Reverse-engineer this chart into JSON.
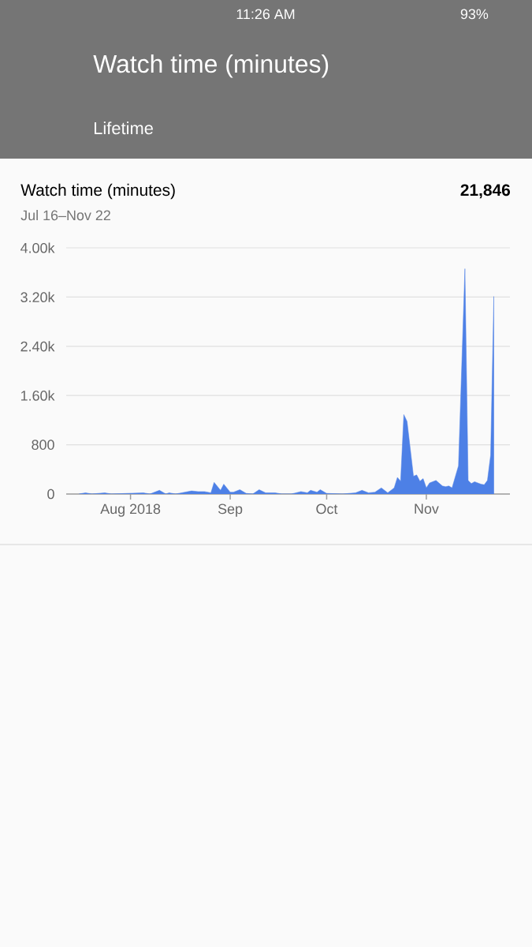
{
  "chart_data": {
    "type": "area",
    "title": "Watch time (minutes)",
    "subtitle": "Jul 16–Nov 22",
    "annotations": [
      "Watch time (minutes)",
      "Lifetime",
      "21,846",
      "11:26 AM",
      "93%"
    ],
    "x": [
      "2018-07-16",
      "2018-07-18",
      "2018-07-20",
      "2018-07-24",
      "2018-07-26",
      "2018-08-05",
      "2018-08-07",
      "2018-08-10",
      "2018-08-12",
      "2018-08-13",
      "2018-08-15",
      "2018-08-20",
      "2018-08-22",
      "2018-08-24",
      "2018-08-26",
      "2018-08-27",
      "2018-08-29",
      "2018-08-30",
      "2018-09-01",
      "2018-09-02",
      "2018-09-04",
      "2018-09-06",
      "2018-09-08",
      "2018-09-10",
      "2018-09-12",
      "2018-09-15",
      "2018-09-17",
      "2018-09-20",
      "2018-09-23",
      "2018-09-25",
      "2018-09-26",
      "2018-09-28",
      "2018-09-29",
      "2018-10-01",
      "2018-10-06",
      "2018-10-10",
      "2018-10-12",
      "2018-10-14",
      "2018-10-16",
      "2018-10-18",
      "2018-10-20",
      "2018-10-22",
      "2018-10-23",
      "2018-10-24",
      "2018-10-25",
      "2018-10-26",
      "2018-10-28",
      "2018-10-29",
      "2018-10-30",
      "2018-10-31",
      "2018-11-01",
      "2018-11-02",
      "2018-11-04",
      "2018-11-06",
      "2018-11-07",
      "2018-11-08",
      "2018-11-09",
      "2018-11-11",
      "2018-11-13",
      "2018-11-14",
      "2018-11-15",
      "2018-11-16",
      "2018-11-18",
      "2018-11-19",
      "2018-11-20",
      "2018-11-21",
      "2018-11-22"
    ],
    "series": [
      {
        "color": "#4d80e6",
        "values": [
          0,
          20,
          0,
          20,
          0,
          20,
          0,
          60,
          0,
          20,
          0,
          50,
          40,
          40,
          20,
          190,
          60,
          160,
          30,
          30,
          70,
          10,
          0,
          70,
          20,
          20,
          0,
          0,
          40,
          20,
          60,
          30,
          70,
          10,
          0,
          20,
          60,
          20,
          30,
          100,
          20,
          100,
          270,
          210,
          1290,
          1180,
          290,
          310,
          210,
          250,
          100,
          180,
          220,
          130,
          120,
          130,
          100,
          460,
          3660,
          220,
          170,
          200,
          160,
          150,
          220,
          630,
          3210
        ]
      }
    ],
    "xlim": [
      "2018-07-12",
      "2018-11-27"
    ],
    "xticks": [
      {
        "value": "2018-08-01",
        "label": "Aug 2018"
      },
      {
        "value": "2018-09-01",
        "label": "Sep"
      },
      {
        "value": "2018-10-01",
        "label": "Oct"
      },
      {
        "value": "2018-11-01",
        "label": "Nov"
      }
    ],
    "ylim": [
      0,
      4000
    ],
    "yticks": [
      0,
      800,
      {
        "value": 1600,
        "label": "1.60k"
      },
      {
        "value": 2400,
        "label": "2.40k"
      },
      {
        "value": 3200,
        "label": "3.20k"
      },
      {
        "value": 4000,
        "label": "4.00k"
      }
    ],
    "grid": "y"
  }
}
